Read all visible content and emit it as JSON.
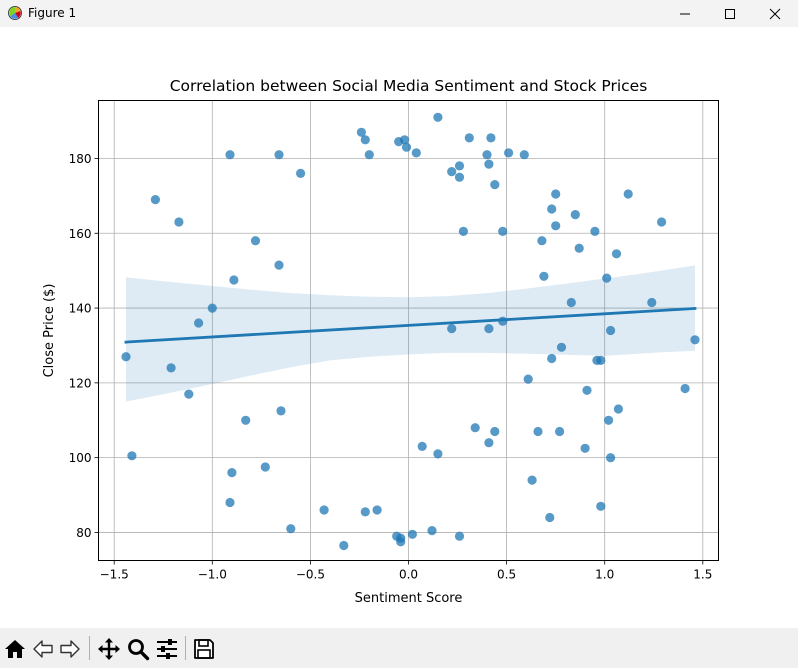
{
  "window": {
    "title": "Figure 1",
    "icon": "matplotlib-figure-icon",
    "controls": [
      "minimize-icon",
      "maximize-icon",
      "close-icon"
    ]
  },
  "toolbar": {
    "tools": [
      {
        "name": "home-icon"
      },
      {
        "name": "back-arrow-icon"
      },
      {
        "name": "forward-arrow-icon"
      },
      {
        "name": "pan-move-icon"
      },
      {
        "name": "zoom-magnifier-icon"
      },
      {
        "name": "configure-subplots-icon"
      },
      {
        "name": "save-disk-icon"
      }
    ]
  },
  "chart_data": {
    "type": "scatter",
    "title": "Correlation between Social Media Sentiment and Stock Prices",
    "xlabel": "Sentiment Score",
    "ylabel": "Close Price ($)",
    "xlim": [
      -1.58,
      1.58
    ],
    "ylim": [
      72.5,
      195.5
    ],
    "xticks": [
      -1.5,
      -1.0,
      -0.5,
      0.0,
      0.5,
      1.0,
      1.5
    ],
    "xtick_labels": [
      "−1.5",
      "−1.0",
      "−0.5",
      "0.0",
      "0.5",
      "1.0",
      "1.5"
    ],
    "yticks": [
      80,
      100,
      120,
      140,
      160,
      180
    ],
    "ytick_labels": [
      "80",
      "100",
      "120",
      "140",
      "160",
      "180"
    ],
    "grid": true,
    "colors": {
      "points": "#1f77b4",
      "line": "#1f77b4",
      "band": "#1f77b4"
    },
    "points": [
      [
        -1.44,
        127
      ],
      [
        -1.41,
        100.5
      ],
      [
        -1.29,
        169
      ],
      [
        -1.21,
        124
      ],
      [
        -1.17,
        163
      ],
      [
        -1.12,
        117
      ],
      [
        -1.07,
        136
      ],
      [
        -1.0,
        140
      ],
      [
        -0.91,
        181
      ],
      [
        -0.9,
        96
      ],
      [
        -0.91,
        88
      ],
      [
        -0.89,
        147.5
      ],
      [
        -0.83,
        110
      ],
      [
        -0.78,
        158
      ],
      [
        -0.73,
        97.5
      ],
      [
        -0.66,
        181
      ],
      [
        -0.66,
        151.5
      ],
      [
        -0.65,
        112.5
      ],
      [
        -0.6,
        81
      ],
      [
        -0.55,
        176
      ],
      [
        -0.43,
        86
      ],
      [
        -0.33,
        76.5
      ],
      [
        -0.24,
        187
      ],
      [
        -0.22,
        185
      ],
      [
        -0.22,
        85.5
      ],
      [
        -0.2,
        181
      ],
      [
        -0.16,
        86
      ],
      [
        -0.06,
        79
      ],
      [
        -0.05,
        184.5
      ],
      [
        -0.04,
        78.5
      ],
      [
        -0.04,
        77.5
      ],
      [
        -0.02,
        185
      ],
      [
        -0.01,
        183
      ],
      [
        0.02,
        79.5
      ],
      [
        0.04,
        181.5
      ],
      [
        0.07,
        103
      ],
      [
        0.12,
        80.5
      ],
      [
        0.15,
        191
      ],
      [
        0.15,
        101
      ],
      [
        0.22,
        134.5
      ],
      [
        0.22,
        176.5
      ],
      [
        0.26,
        178
      ],
      [
        0.26,
        175
      ],
      [
        0.26,
        79
      ],
      [
        0.28,
        160.5
      ],
      [
        0.31,
        185.5
      ],
      [
        0.34,
        108
      ],
      [
        0.4,
        181
      ],
      [
        0.41,
        178.5
      ],
      [
        0.41,
        134.5
      ],
      [
        0.41,
        104
      ],
      [
        0.42,
        185.5
      ],
      [
        0.44,
        173
      ],
      [
        0.44,
        107
      ],
      [
        0.48,
        160.5
      ],
      [
        0.48,
        136.5
      ],
      [
        0.51,
        181.5
      ],
      [
        0.59,
        181
      ],
      [
        0.61,
        121
      ],
      [
        0.63,
        94
      ],
      [
        0.66,
        107
      ],
      [
        0.68,
        158
      ],
      [
        0.69,
        148.5
      ],
      [
        0.72,
        84
      ],
      [
        0.73,
        166.5
      ],
      [
        0.73,
        126.5
      ],
      [
        0.75,
        170.5
      ],
      [
        0.75,
        162
      ],
      [
        0.77,
        107
      ],
      [
        0.78,
        129.5
      ],
      [
        0.83,
        141.5
      ],
      [
        0.85,
        165
      ],
      [
        0.87,
        156
      ],
      [
        0.9,
        102.5
      ],
      [
        0.91,
        118
      ],
      [
        0.95,
        160.5
      ],
      [
        0.96,
        126
      ],
      [
        0.98,
        87
      ],
      [
        0.98,
        126
      ],
      [
        1.01,
        148
      ],
      [
        1.02,
        110
      ],
      [
        1.03,
        100
      ],
      [
        1.03,
        134
      ],
      [
        1.06,
        154.5
      ],
      [
        1.07,
        113
      ],
      [
        1.12,
        170.5
      ],
      [
        1.24,
        141.5
      ],
      [
        1.29,
        163
      ],
      [
        1.41,
        118.5
      ],
      [
        1.46,
        131.5
      ]
    ],
    "regression_line": {
      "x": [
        -1.44,
        1.46
      ],
      "y": [
        130.9,
        139.9
      ]
    },
    "confidence_band": {
      "x": [
        -1.44,
        -1.2,
        -1.0,
        -0.8,
        -0.6,
        -0.4,
        -0.2,
        0.0,
        0.2,
        0.4,
        0.6,
        0.8,
        1.0,
        1.2,
        1.46
      ],
      "upper": [
        148.2,
        146.9,
        145.9,
        144.9,
        144.0,
        143.4,
        143.0,
        142.9,
        143.2,
        144.0,
        145.2,
        146.5,
        147.9,
        149.3,
        151.4
      ],
      "lower": [
        115.0,
        117.5,
        119.7,
        122.0,
        124.2,
        126.0,
        127.0,
        127.6,
        128.0,
        128.0,
        127.8,
        127.5,
        127.2,
        127.9,
        128.6
      ]
    }
  }
}
